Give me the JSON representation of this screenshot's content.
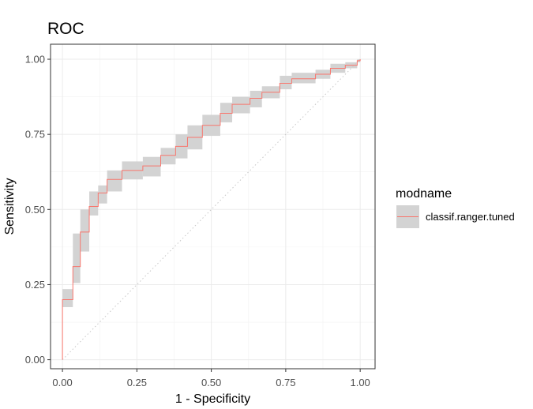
{
  "chart_data": {
    "type": "line",
    "title": "ROC",
    "xlabel": "1 - Specificity",
    "ylabel": "Sensitivity",
    "xlim": [
      -0.04,
      1.05
    ],
    "ylim": [
      -0.03,
      1.05
    ],
    "x_ticks": [
      "0.00",
      "0.25",
      "0.50",
      "0.75",
      "1.00"
    ],
    "y_ticks": [
      "0.00",
      "0.25",
      "0.50",
      "0.75",
      "1.00"
    ],
    "grid": true,
    "legend": {
      "title": "modname",
      "position": "right"
    },
    "reference_line": {
      "style": "dotted",
      "from": [
        0,
        0
      ],
      "to": [
        1,
        1
      ]
    },
    "series": [
      {
        "name": "classif.ranger.tuned",
        "color": "#F8766D",
        "band_color": "#d3d3d3",
        "steps": [
          {
            "x": 0.0,
            "y": 0.0,
            "lo": 0.0,
            "hi": 0.0
          },
          {
            "x": 0.0,
            "y": 0.2,
            "lo": 0.175,
            "hi": 0.235
          },
          {
            "x": 0.035,
            "y": 0.31,
            "lo": 0.255,
            "hi": 0.42
          },
          {
            "x": 0.06,
            "y": 0.425,
            "lo": 0.36,
            "hi": 0.5
          },
          {
            "x": 0.09,
            "y": 0.51,
            "lo": 0.48,
            "hi": 0.56
          },
          {
            "x": 0.12,
            "y": 0.555,
            "lo": 0.52,
            "hi": 0.58
          },
          {
            "x": 0.15,
            "y": 0.6,
            "lo": 0.56,
            "hi": 0.63
          },
          {
            "x": 0.2,
            "y": 0.63,
            "lo": 0.6,
            "hi": 0.66
          },
          {
            "x": 0.27,
            "y": 0.645,
            "lo": 0.61,
            "hi": 0.675
          },
          {
            "x": 0.33,
            "y": 0.68,
            "lo": 0.65,
            "hi": 0.705
          },
          {
            "x": 0.38,
            "y": 0.71,
            "lo": 0.67,
            "hi": 0.75
          },
          {
            "x": 0.42,
            "y": 0.74,
            "lo": 0.7,
            "hi": 0.78
          },
          {
            "x": 0.47,
            "y": 0.78,
            "lo": 0.745,
            "hi": 0.815
          },
          {
            "x": 0.53,
            "y": 0.82,
            "lo": 0.79,
            "hi": 0.855
          },
          {
            "x": 0.57,
            "y": 0.85,
            "lo": 0.82,
            "hi": 0.875
          },
          {
            "x": 0.63,
            "y": 0.87,
            "lo": 0.84,
            "hi": 0.895
          },
          {
            "x": 0.67,
            "y": 0.89,
            "lo": 0.87,
            "hi": 0.91
          },
          {
            "x": 0.73,
            "y": 0.92,
            "lo": 0.9,
            "hi": 0.945
          },
          {
            "x": 0.77,
            "y": 0.935,
            "lo": 0.92,
            "hi": 0.955
          },
          {
            "x": 0.85,
            "y": 0.95,
            "lo": 0.935,
            "hi": 0.965
          },
          {
            "x": 0.9,
            "y": 0.97,
            "lo": 0.955,
            "hi": 0.985
          },
          {
            "x": 0.95,
            "y": 0.98,
            "lo": 0.97,
            "hi": 0.99
          },
          {
            "x": 0.99,
            "y": 0.995,
            "lo": 0.99,
            "hi": 1.0
          },
          {
            "x": 1.0,
            "y": 1.0,
            "lo": 1.0,
            "hi": 1.0
          }
        ]
      }
    ]
  }
}
